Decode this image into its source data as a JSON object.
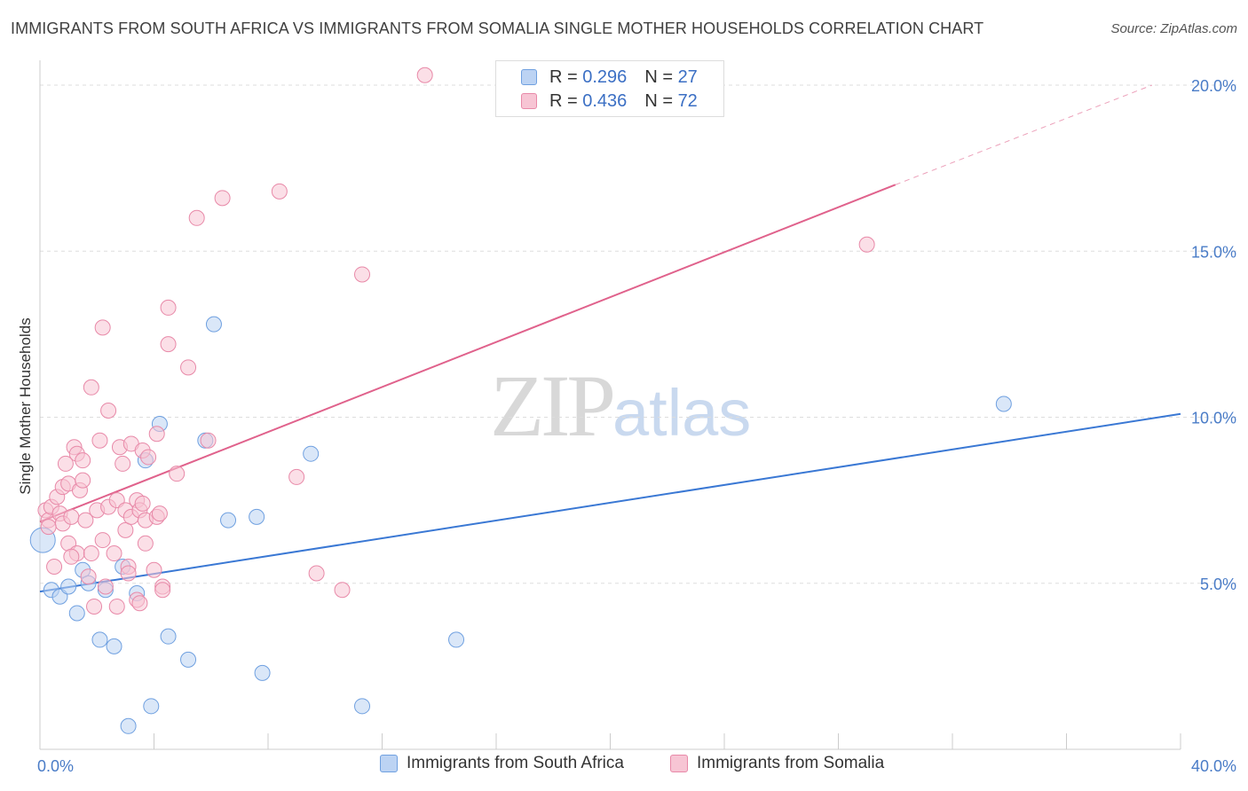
{
  "header": {
    "title": "IMMIGRANTS FROM SOUTH AFRICA VS IMMIGRANTS FROM SOMALIA SINGLE MOTHER HOUSEHOLDS CORRELATION CHART",
    "source": "Source: ZipAtlas.com"
  },
  "watermark": {
    "zip": "ZIP",
    "atlas": "atlas"
  },
  "legend": {
    "r_label": "R =",
    "n_label": "N =",
    "series1": {
      "r": "0.296",
      "n": "27"
    },
    "series2": {
      "r": "0.436",
      "n": "72"
    }
  },
  "colors": {
    "blue": "#6fa0e0",
    "blue_fill": "#bcd3f3",
    "blue_line": "#3a78d4",
    "pink": "#e889a8",
    "pink_fill": "#f7c5d4",
    "pink_line": "#e0628c",
    "grid": "#dddddd",
    "axis_label": "#4a7cc7"
  },
  "chart_data": {
    "type": "scatter",
    "title": "IMMIGRANTS FROM SOUTH AFRICA VS IMMIGRANTS FROM SOMALIA SINGLE MOTHER HOUSEHOLDS CORRELATION CHART",
    "xlabel": "",
    "ylabel": "Single Mother Households",
    "xlim": [
      0,
      40
    ],
    "ylim": [
      0,
      20
    ],
    "x_tick_labels": [
      "0.0%",
      "40.0%"
    ],
    "y_ticks": [
      5,
      10,
      15,
      20
    ],
    "y_tick_labels": [
      "5.0%",
      "10.0%",
      "15.0%",
      "20.0%"
    ],
    "grid": true,
    "series": [
      {
        "name": "Immigrants from South Africa",
        "color": "#6fa0e0",
        "r": 0.296,
        "n": 27,
        "trend": {
          "x0": 0,
          "y0": 4.75,
          "x1": 40,
          "y1": 10.1
        },
        "points": [
          [
            0.1,
            6.3
          ],
          [
            0.4,
            4.8
          ],
          [
            0.7,
            4.6
          ],
          [
            1.0,
            4.9
          ],
          [
            1.3,
            4.1
          ],
          [
            1.5,
            5.4
          ],
          [
            1.7,
            5.0
          ],
          [
            2.1,
            3.3
          ],
          [
            2.3,
            4.8
          ],
          [
            2.6,
            3.1
          ],
          [
            2.9,
            5.5
          ],
          [
            3.1,
            0.7
          ],
          [
            3.4,
            4.7
          ],
          [
            3.7,
            8.7
          ],
          [
            3.9,
            1.3
          ],
          [
            4.2,
            9.8
          ],
          [
            4.5,
            3.4
          ],
          [
            5.2,
            2.7
          ],
          [
            5.8,
            9.3
          ],
          [
            6.1,
            12.8
          ],
          [
            6.6,
            6.9
          ],
          [
            7.6,
            7.0
          ],
          [
            7.8,
            2.3
          ],
          [
            9.5,
            8.9
          ],
          [
            11.3,
            1.3
          ],
          [
            14.6,
            3.3
          ],
          [
            33.8,
            10.4
          ]
        ]
      },
      {
        "name": "Immigrants from Somalia",
        "color": "#e889a8",
        "r": 0.436,
        "n": 72,
        "trend": {
          "x0": 0,
          "y0": 6.85,
          "x1": 30,
          "y1": 17.0,
          "dash_x1": 39,
          "dash_y1": 20.0
        },
        "points": [
          [
            0.2,
            7.2
          ],
          [
            0.3,
            6.9
          ],
          [
            0.4,
            7.3
          ],
          [
            0.5,
            5.5
          ],
          [
            0.6,
            7.6
          ],
          [
            0.7,
            7.1
          ],
          [
            0.8,
            6.8
          ],
          [
            0.8,
            7.9
          ],
          [
            0.9,
            8.6
          ],
          [
            1.0,
            6.2
          ],
          [
            1.0,
            8.0
          ],
          [
            1.1,
            7.0
          ],
          [
            1.2,
            9.1
          ],
          [
            1.3,
            8.9
          ],
          [
            1.3,
            5.9
          ],
          [
            1.4,
            7.8
          ],
          [
            1.5,
            8.7
          ],
          [
            1.5,
            8.1
          ],
          [
            1.6,
            6.9
          ],
          [
            1.7,
            5.2
          ],
          [
            1.8,
            10.9
          ],
          [
            1.8,
            5.9
          ],
          [
            1.9,
            4.3
          ],
          [
            2.0,
            7.2
          ],
          [
            2.1,
            9.3
          ],
          [
            2.2,
            6.3
          ],
          [
            2.2,
            12.7
          ],
          [
            2.3,
            4.9
          ],
          [
            2.4,
            7.3
          ],
          [
            2.4,
            10.2
          ],
          [
            2.6,
            5.9
          ],
          [
            2.7,
            4.3
          ],
          [
            2.7,
            7.5
          ],
          [
            2.8,
            9.1
          ],
          [
            2.9,
            8.6
          ],
          [
            3.0,
            6.6
          ],
          [
            3.0,
            7.2
          ],
          [
            3.1,
            5.5
          ],
          [
            3.1,
            5.3
          ],
          [
            3.2,
            7.0
          ],
          [
            3.2,
            9.2
          ],
          [
            3.4,
            7.5
          ],
          [
            3.4,
            4.5
          ],
          [
            3.5,
            4.4
          ],
          [
            3.5,
            7.2
          ],
          [
            3.6,
            9.0
          ],
          [
            3.6,
            7.4
          ],
          [
            3.7,
            6.9
          ],
          [
            3.7,
            6.2
          ],
          [
            3.8,
            8.8
          ],
          [
            4.0,
            5.4
          ],
          [
            4.1,
            7.0
          ],
          [
            4.1,
            9.5
          ],
          [
            4.2,
            7.1
          ],
          [
            4.3,
            4.9
          ],
          [
            4.3,
            4.8
          ],
          [
            4.5,
            13.3
          ],
          [
            4.5,
            12.2
          ],
          [
            4.8,
            8.3
          ],
          [
            5.2,
            11.5
          ],
          [
            5.5,
            16.0
          ],
          [
            5.9,
            9.3
          ],
          [
            6.4,
            16.6
          ],
          [
            8.4,
            16.8
          ],
          [
            9.0,
            8.2
          ],
          [
            9.7,
            5.3
          ],
          [
            10.6,
            4.8
          ],
          [
            11.3,
            14.3
          ],
          [
            13.5,
            20.3
          ],
          [
            29.0,
            15.2
          ],
          [
            0.3,
            6.7
          ],
          [
            1.1,
            5.8
          ]
        ]
      }
    ]
  },
  "bottom_legend": {
    "item1": "Immigrants from South Africa",
    "item2": "Immigrants from Somalia"
  }
}
